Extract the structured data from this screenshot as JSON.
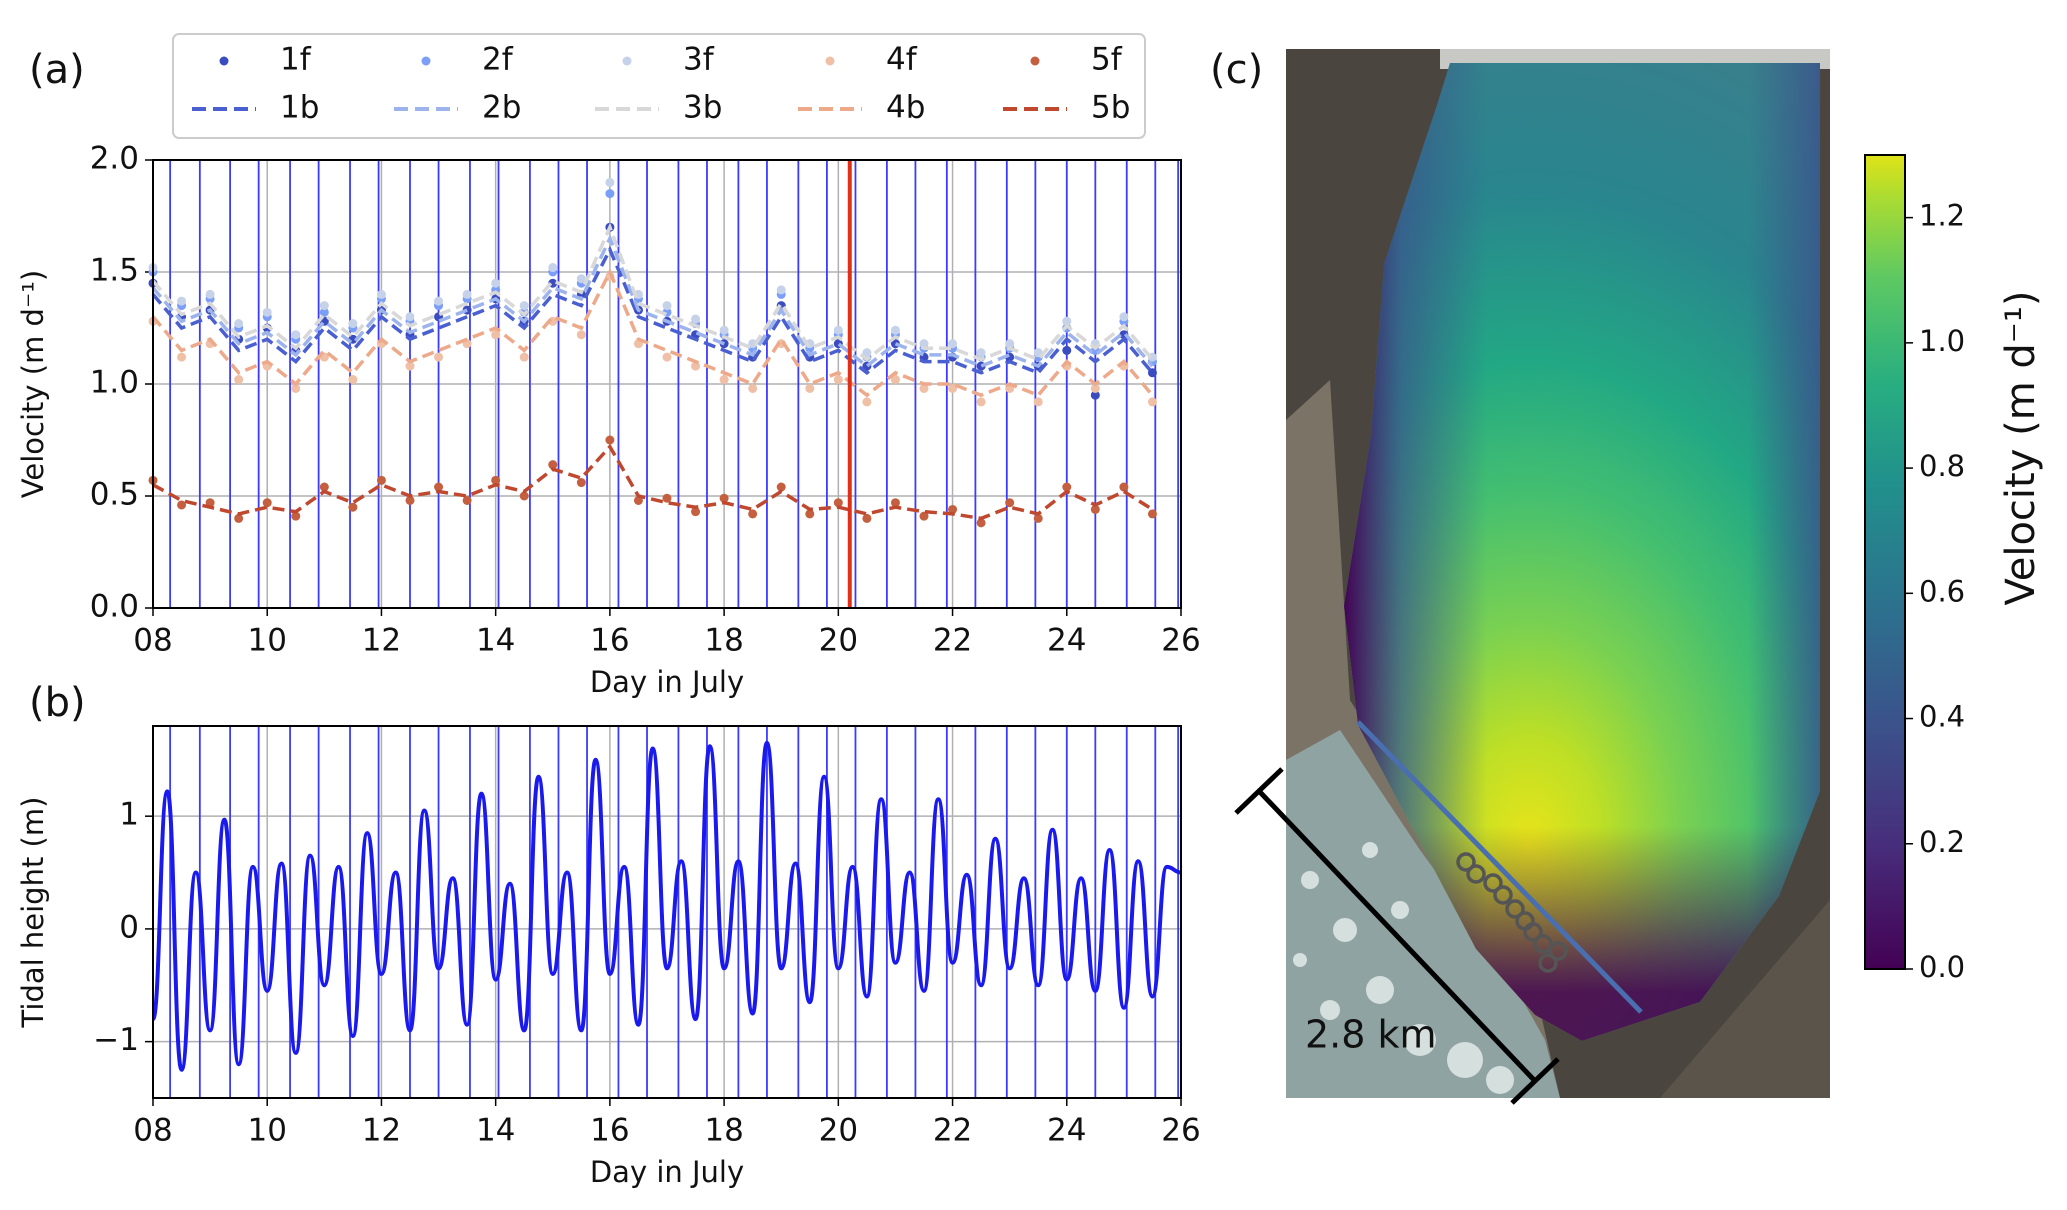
{
  "labels": {
    "a": "(a)",
    "b": "(b)",
    "c": "(c)"
  },
  "chart_data": [
    {
      "type": "timeseries",
      "xlabel": "Day in July",
      "ylabel": "Velocity (m d⁻¹)",
      "xlim": [
        8,
        26
      ],
      "ylim": [
        0,
        2
      ],
      "xticks": [
        {
          "value": 8,
          "label": "08"
        },
        10,
        12,
        14,
        16,
        18,
        20,
        22,
        24,
        26
      ],
      "yticks": [
        {
          "value": 0,
          "label": "0.0"
        },
        {
          "value": 0.5,
          "label": "0.5"
        },
        {
          "value": 1,
          "label": "1.0"
        },
        {
          "value": 1.5,
          "label": "1.5"
        },
        {
          "value": 2,
          "label": "2.0"
        }
      ],
      "grid": true,
      "vlines": [
        8.3,
        8.82,
        9.35,
        9.85,
        10.4,
        10.9,
        11.45,
        11.95,
        12.5,
        13.0,
        13.55,
        14.05,
        14.6,
        15.1,
        15.6,
        16.15,
        16.65,
        17.2,
        17.7,
        18.25,
        18.75,
        19.3,
        19.8,
        20.3,
        20.85,
        21.35,
        21.9,
        22.4,
        22.95,
        23.45,
        24.0,
        24.5,
        25.05,
        25.55,
        25.95
      ],
      "vline_color": "#3b3bff",
      "highlight_x": 20.2,
      "highlight_color": "#e0301a",
      "x": [
        8,
        8.5,
        9,
        9.5,
        10,
        10.5,
        11,
        11.5,
        12,
        12.5,
        13,
        13.5,
        14,
        14.5,
        15,
        15.5,
        16,
        16.5,
        17,
        17.5,
        18,
        18.5,
        19,
        19.5,
        20,
        20.5,
        21,
        21.5,
        22,
        22.5,
        23,
        23.5,
        24,
        24.5,
        25,
        25.5
      ],
      "series": [
        {
          "name": "1f",
          "style": "dots",
          "color": "#3b4cc0",
          "values": [
            1.45,
            1.3,
            1.33,
            1.2,
            1.25,
            1.15,
            1.28,
            1.2,
            1.33,
            1.22,
            1.3,
            1.33,
            1.38,
            1.28,
            1.45,
            1.4,
            1.7,
            1.33,
            1.28,
            1.22,
            1.18,
            1.12,
            1.35,
            1.12,
            1.18,
            1.08,
            1.18,
            1.12,
            1.12,
            1.08,
            1.12,
            1.08,
            1.15,
            0.95,
            1.22,
            1.05
          ]
        },
        {
          "name": "2f",
          "style": "dots",
          "color": "#7b9ff9",
          "values": [
            1.5,
            1.35,
            1.38,
            1.25,
            1.3,
            1.2,
            1.32,
            1.25,
            1.38,
            1.28,
            1.35,
            1.38,
            1.42,
            1.32,
            1.5,
            1.45,
            1.85,
            1.38,
            1.32,
            1.27,
            1.22,
            1.16,
            1.4,
            1.16,
            1.22,
            1.12,
            1.22,
            1.16,
            1.16,
            1.12,
            1.16,
            1.12,
            1.25,
            1.15,
            1.28,
            1.1
          ]
        },
        {
          "name": "3f",
          "style": "dots",
          "color": "#c5d2ea",
          "values": [
            1.52,
            1.37,
            1.4,
            1.27,
            1.32,
            1.22,
            1.35,
            1.27,
            1.4,
            1.3,
            1.37,
            1.4,
            1.45,
            1.35,
            1.52,
            1.47,
            1.9,
            1.4,
            1.35,
            1.29,
            1.24,
            1.18,
            1.42,
            1.18,
            1.24,
            1.14,
            1.24,
            1.18,
            1.18,
            1.14,
            1.18,
            1.14,
            1.28,
            1.18,
            1.3,
            1.12
          ]
        },
        {
          "name": "4f",
          "style": "dots",
          "color": "#efbfa6",
          "values": [
            1.28,
            1.12,
            1.18,
            1.02,
            1.08,
            0.98,
            1.12,
            1.02,
            1.18,
            1.08,
            1.12,
            1.18,
            1.22,
            1.12,
            1.28,
            1.22,
            1.48,
            1.18,
            1.12,
            1.08,
            1.02,
            0.98,
            1.18,
            0.98,
            1.02,
            0.92,
            1.02,
            0.98,
            0.98,
            0.92,
            0.98,
            0.92,
            1.08,
            0.98,
            1.08,
            0.92
          ]
        },
        {
          "name": "5f",
          "style": "dots",
          "color": "#c4603f",
          "values": [
            0.57,
            0.46,
            0.47,
            0.4,
            0.47,
            0.41,
            0.54,
            0.45,
            0.57,
            0.48,
            0.54,
            0.48,
            0.57,
            0.5,
            0.64,
            0.56,
            0.75,
            0.48,
            0.49,
            0.43,
            0.49,
            0.42,
            0.54,
            0.42,
            0.47,
            0.4,
            0.47,
            0.41,
            0.44,
            0.38,
            0.47,
            0.4,
            0.54,
            0.44,
            0.54,
            0.42
          ]
        },
        {
          "name": "1b",
          "style": "dashed",
          "color": "#4a5fd0",
          "values": [
            1.4,
            1.25,
            1.3,
            1.15,
            1.2,
            1.1,
            1.25,
            1.15,
            1.3,
            1.2,
            1.25,
            1.3,
            1.35,
            1.25,
            1.4,
            1.35,
            1.6,
            1.3,
            1.25,
            1.2,
            1.15,
            1.1,
            1.3,
            1.1,
            1.15,
            1.05,
            1.15,
            1.1,
            1.1,
            1.05,
            1.1,
            1.05,
            1.2,
            1.1,
            1.2,
            1.05
          ]
        },
        {
          "name": "2b",
          "style": "dashed",
          "color": "#9db3ec",
          "values": [
            1.43,
            1.28,
            1.33,
            1.18,
            1.23,
            1.13,
            1.28,
            1.18,
            1.33,
            1.23,
            1.28,
            1.33,
            1.38,
            1.28,
            1.43,
            1.38,
            1.65,
            1.33,
            1.28,
            1.23,
            1.18,
            1.13,
            1.33,
            1.13,
            1.18,
            1.08,
            1.18,
            1.13,
            1.13,
            1.08,
            1.13,
            1.08,
            1.23,
            1.13,
            1.23,
            1.08
          ]
        },
        {
          "name": "3b",
          "style": "dashed",
          "color": "#d8d8d8",
          "values": [
            1.46,
            1.31,
            1.36,
            1.21,
            1.26,
            1.16,
            1.31,
            1.21,
            1.36,
            1.26,
            1.31,
            1.36,
            1.41,
            1.31,
            1.46,
            1.41,
            1.7,
            1.36,
            1.31,
            1.26,
            1.21,
            1.16,
            1.36,
            1.16,
            1.21,
            1.11,
            1.21,
            1.16,
            1.16,
            1.11,
            1.16,
            1.11,
            1.26,
            1.16,
            1.26,
            1.11
          ]
        },
        {
          "name": "4b",
          "style": "dashed",
          "color": "#eda98a",
          "values": [
            1.3,
            1.15,
            1.2,
            1.05,
            1.1,
            1.0,
            1.15,
            1.05,
            1.2,
            1.1,
            1.15,
            1.2,
            1.25,
            1.15,
            1.3,
            1.25,
            1.5,
            1.2,
            1.15,
            1.1,
            1.05,
            1.0,
            1.2,
            1.0,
            1.05,
            0.95,
            1.05,
            1.0,
            1.0,
            0.95,
            1.0,
            0.95,
            1.1,
            1.0,
            1.1,
            0.95
          ]
        },
        {
          "name": "5b",
          "style": "dashed",
          "color": "#c0482f",
          "values": [
            0.55,
            0.48,
            0.45,
            0.42,
            0.45,
            0.43,
            0.52,
            0.47,
            0.55,
            0.5,
            0.52,
            0.5,
            0.55,
            0.52,
            0.62,
            0.58,
            0.72,
            0.5,
            0.47,
            0.45,
            0.47,
            0.44,
            0.52,
            0.44,
            0.45,
            0.42,
            0.45,
            0.43,
            0.42,
            0.4,
            0.45,
            0.42,
            0.52,
            0.46,
            0.52,
            0.44
          ]
        }
      ]
    },
    {
      "type": "line",
      "xlabel": "Day in July",
      "ylabel": "Tidal height (m)",
      "color": "#1a1aee",
      "xlim": [
        8,
        26
      ],
      "ylim": [
        -1.5,
        1.8
      ],
      "xticks": [
        {
          "value": 8,
          "label": "08"
        },
        10,
        12,
        14,
        16,
        18,
        20,
        22,
        24,
        26
      ],
      "yticks": [
        {
          "value": -1,
          "label": "−1"
        },
        0,
        1
      ],
      "grid": true,
      "x": [
        8,
        8.25,
        8.5,
        8.75,
        9,
        9.25,
        9.5,
        9.75,
        10,
        10.25,
        10.5,
        10.75,
        11,
        11.25,
        11.5,
        11.75,
        12,
        12.25,
        12.5,
        12.75,
        13,
        13.25,
        13.5,
        13.75,
        14,
        14.25,
        14.5,
        14.75,
        15,
        15.25,
        15.5,
        15.75,
        16,
        16.25,
        16.5,
        16.75,
        17,
        17.25,
        17.5,
        17.75,
        18,
        18.25,
        18.5,
        18.75,
        19,
        19.25,
        19.5,
        19.75,
        20,
        20.25,
        20.5,
        20.75,
        21,
        21.25,
        21.5,
        21.75,
        22,
        22.25,
        22.5,
        22.75,
        23,
        23.25,
        23.5,
        23.75,
        24,
        24.25,
        24.5,
        24.75,
        25,
        25.25,
        25.5,
        25.75,
        26
      ],
      "values": [
        -0.8,
        1.22,
        -1.25,
        0.5,
        -0.9,
        0.97,
        -1.2,
        0.55,
        -0.55,
        0.58,
        -1.1,
        0.65,
        -0.5,
        0.55,
        -0.95,
        0.85,
        -0.4,
        0.5,
        -0.9,
        1.05,
        -0.35,
        0.45,
        -0.85,
        1.2,
        -0.45,
        0.4,
        -0.9,
        1.35,
        -0.4,
        0.5,
        -0.9,
        1.5,
        -0.4,
        0.55,
        -0.85,
        1.6,
        -0.35,
        0.6,
        -0.8,
        1.62,
        -0.35,
        0.6,
        -0.75,
        1.65,
        -0.35,
        0.58,
        -0.65,
        1.35,
        -0.35,
        0.55,
        -0.6,
        1.15,
        -0.3,
        0.5,
        -0.55,
        1.15,
        -0.3,
        0.48,
        -0.5,
        0.8,
        -0.35,
        0.45,
        -0.5,
        0.88,
        -0.45,
        0.45,
        -0.55,
        0.7,
        -0.7,
        0.6,
        -0.6,
        0.55,
        0.5
      ]
    },
    {
      "type": "colorbar",
      "ylabel": "Velocity (m d⁻¹)",
      "ylim": [
        0,
        1.3
      ],
      "yticks": [
        {
          "value": 0,
          "label": "0.0"
        },
        {
          "value": 0.2,
          "label": "0.2"
        },
        {
          "value": 0.4,
          "label": "0.4"
        },
        {
          "value": 0.6,
          "label": "0.6"
        },
        {
          "value": 0.8,
          "label": "0.8"
        },
        {
          "value": 1,
          "label": "1.0"
        },
        {
          "value": 1.2,
          "label": "1.2"
        }
      ],
      "scale_label": "2.8 km"
    }
  ]
}
